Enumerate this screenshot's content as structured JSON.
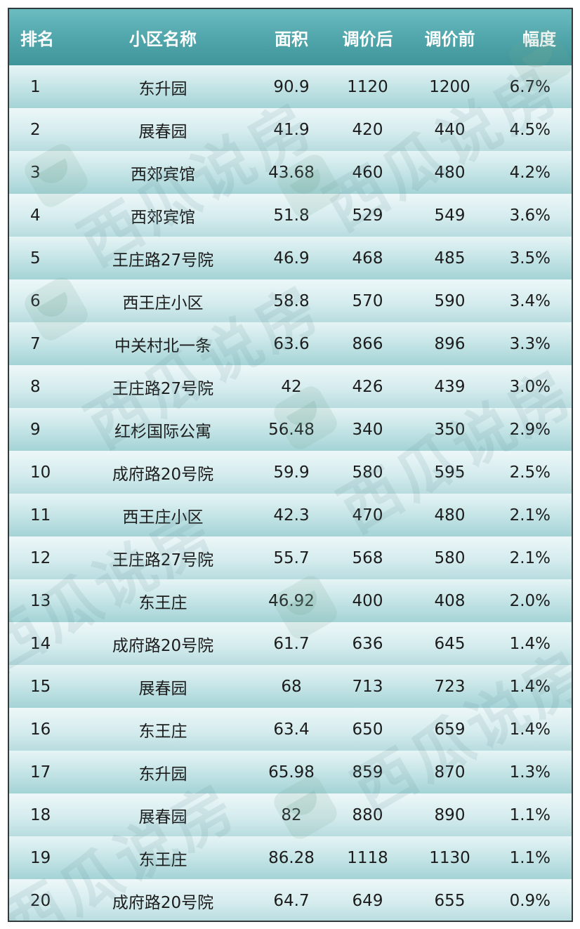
{
  "table": {
    "headers": {
      "rank": "排名",
      "name": "小区名称",
      "area": "面积",
      "after": "调价后",
      "before": "调价前",
      "change": "幅度"
    },
    "rows": [
      {
        "rank": "1",
        "name": "东升园",
        "area": "90.9",
        "after": "1120",
        "before": "1200",
        "change": "6.7%"
      },
      {
        "rank": "2",
        "name": "展春园",
        "area": "41.9",
        "after": "420",
        "before": "440",
        "change": "4.5%"
      },
      {
        "rank": "3",
        "name": "西郊宾馆",
        "area": "43.68",
        "after": "460",
        "before": "480",
        "change": "4.2%"
      },
      {
        "rank": "4",
        "name": "西郊宾馆",
        "area": "51.8",
        "after": "529",
        "before": "549",
        "change": "3.6%"
      },
      {
        "rank": "5",
        "name": "王庄路27号院",
        "area": "46.9",
        "after": "468",
        "before": "485",
        "change": "3.5%"
      },
      {
        "rank": "6",
        "name": "西王庄小区",
        "area": "58.8",
        "after": "570",
        "before": "590",
        "change": "3.4%"
      },
      {
        "rank": "7",
        "name": "中关村北一条",
        "area": "63.6",
        "after": "866",
        "before": "896",
        "change": "3.3%"
      },
      {
        "rank": "8",
        "name": "王庄路27号院",
        "area": "42",
        "after": "426",
        "before": "439",
        "change": "3.0%"
      },
      {
        "rank": "9",
        "name": "红杉国际公寓",
        "area": "56.48",
        "after": "340",
        "before": "350",
        "change": "2.9%"
      },
      {
        "rank": "10",
        "name": "成府路20号院",
        "area": "59.9",
        "after": "580",
        "before": "595",
        "change": "2.5%"
      },
      {
        "rank": "11",
        "name": "西王庄小区",
        "area": "42.3",
        "after": "470",
        "before": "480",
        "change": "2.1%"
      },
      {
        "rank": "12",
        "name": "王庄路27号院",
        "area": "55.7",
        "after": "568",
        "before": "580",
        "change": "2.1%"
      },
      {
        "rank": "13",
        "name": "东王庄",
        "area": "46.92",
        "after": "400",
        "before": "408",
        "change": "2.0%"
      },
      {
        "rank": "14",
        "name": "成府路20号院",
        "area": "61.7",
        "after": "636",
        "before": "645",
        "change": "1.4%"
      },
      {
        "rank": "15",
        "name": "展春园",
        "area": "68",
        "after": "713",
        "before": "723",
        "change": "1.4%"
      },
      {
        "rank": "16",
        "name": "东王庄",
        "area": "63.4",
        "after": "650",
        "before": "659",
        "change": "1.4%"
      },
      {
        "rank": "17",
        "name": "东升园",
        "area": "65.98",
        "after": "859",
        "before": "870",
        "change": "1.3%"
      },
      {
        "rank": "18",
        "name": "展春园",
        "area": "82",
        "after": "880",
        "before": "890",
        "change": "1.1%"
      },
      {
        "rank": "19",
        "name": "东王庄",
        "area": "86.28",
        "after": "1118",
        "before": "1130",
        "change": "1.1%"
      },
      {
        "rank": "20",
        "name": "成府路20号院",
        "area": "64.7",
        "after": "649",
        "before": "655",
        "change": "0.9%"
      }
    ]
  },
  "watermark": {
    "text": "西瓜说房",
    "logo_icon": "watermelon-logo-icon"
  }
}
